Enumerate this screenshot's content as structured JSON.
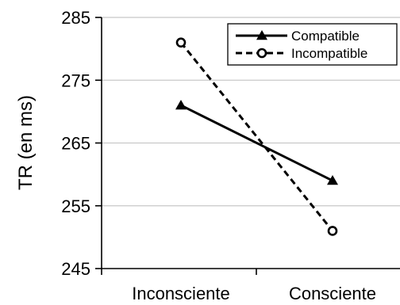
{
  "chart_data": {
    "type": "line",
    "categories": [
      "Inconsciente",
      "Consciente"
    ],
    "series": [
      {
        "name": "Compatible",
        "values": [
          271,
          259
        ],
        "line": "solid",
        "marker": "filled-triangle",
        "color": "#000000"
      },
      {
        "name": "Incompatible",
        "values": [
          281,
          251
        ],
        "line": "dashed",
        "marker": "open-circle",
        "color": "#000000"
      }
    ],
    "ylabel": "TR (en ms)",
    "xlabel": "",
    "ylim": [
      245,
      285
    ],
    "yticks": [
      245,
      255,
      265,
      275,
      285
    ],
    "grid": "horizontal",
    "legend_position": "top-right"
  }
}
